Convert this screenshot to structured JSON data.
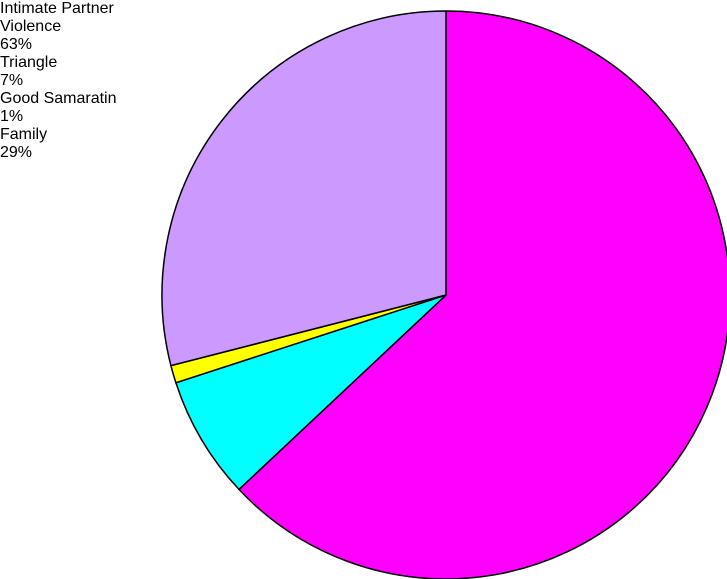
{
  "chart_data": {
    "type": "pie",
    "categories": [
      "Intimate Partner Violence",
      "Triangle",
      "Good Samaratin",
      "Family"
    ],
    "values": [
      63,
      7,
      1,
      29
    ],
    "value_labels": [
      "63%",
      "7%",
      "1%",
      "29%"
    ],
    "colors": [
      "#ff00ff",
      "#00ffff",
      "#ffff00",
      "#cc99ff"
    ]
  }
}
